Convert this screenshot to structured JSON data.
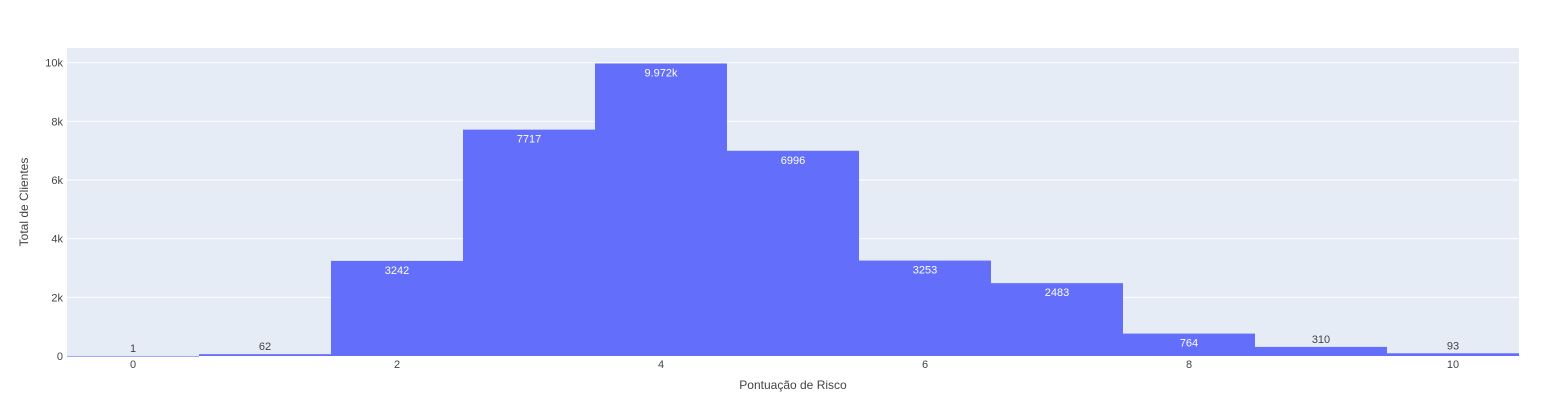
{
  "chart_data": {
    "type": "bar",
    "xlabel": "Pontuação de Risco",
    "ylabel": "Total de Clientes",
    "x": [
      0,
      1,
      2,
      3,
      4,
      5,
      6,
      7,
      8,
      9,
      10
    ],
    "values": [
      1,
      62,
      3242,
      7717,
      9972,
      6996,
      3253,
      2483,
      764,
      310,
      93
    ],
    "data_labels": [
      "1",
      "62",
      "3242",
      "7717",
      "9.972k",
      "6996",
      "3253",
      "2483",
      "764",
      "310",
      "93"
    ],
    "xlim": [
      -0.5,
      10.5
    ],
    "ylim": [
      0,
      10500
    ],
    "x_ticks": [
      0,
      2,
      4,
      6,
      8,
      10
    ],
    "x_tick_labels": [
      "0",
      "2",
      "4",
      "6",
      "8",
      "10"
    ],
    "y_ticks": [
      0,
      2000,
      4000,
      6000,
      8000,
      10000
    ],
    "y_tick_labels": [
      "0",
      "2k",
      "4k",
      "6k",
      "8k",
      "10k"
    ],
    "grid": true,
    "bar_color": "#636efa",
    "plot_bg": "#e5ecf6",
    "grid_color": "#ffffff"
  }
}
